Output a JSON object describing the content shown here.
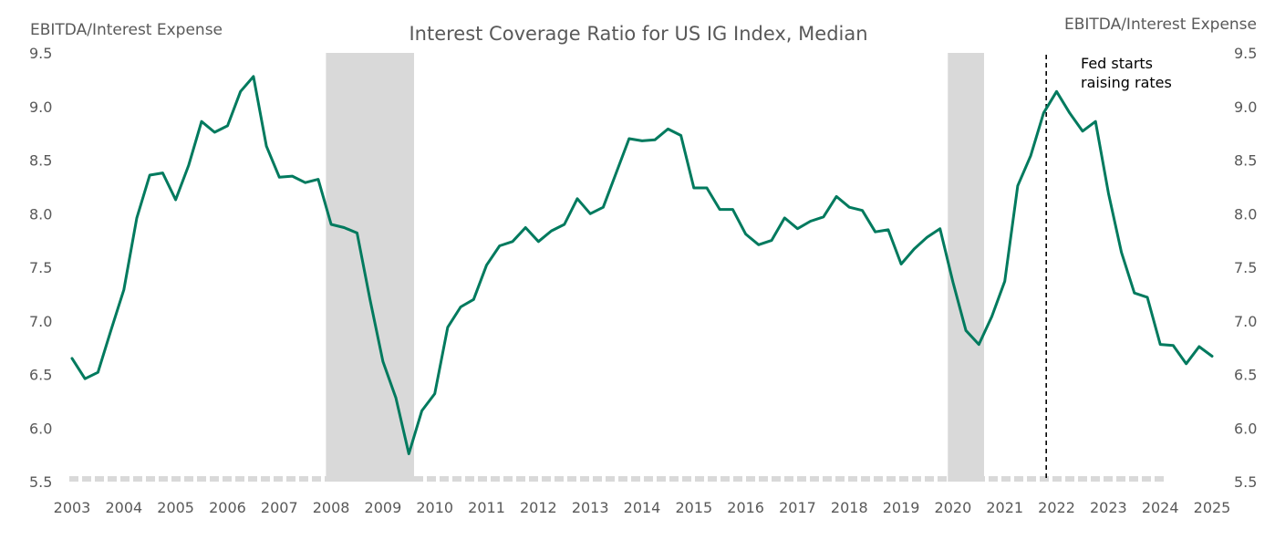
{
  "chart_data": {
    "type": "line",
    "title": "Interest Coverage Ratio for US IG Index, Median",
    "ylabel_left": "EBITDA/Interest Expense",
    "ylabel_right": "EBITDA/Interest Expense",
    "ylim": [
      5.5,
      9.5
    ],
    "yticks": [
      "5.5",
      "6.0",
      "6.5",
      "7.0",
      "7.5",
      "8.0",
      "8.5",
      "9.0",
      "9.5"
    ],
    "xlim": [
      2003,
      2025
    ],
    "xticks": [
      "2003",
      "2004",
      "2005",
      "2006",
      "2007",
      "2008",
      "2009",
      "2010",
      "2011",
      "2012",
      "2013",
      "2014",
      "2015",
      "2016",
      "2017",
      "2018",
      "2019",
      "2020",
      "2021",
      "2022",
      "2023",
      "2024",
      "2025"
    ],
    "recessions": [
      [
        2007.9,
        2009.6
      ],
      [
        2019.9,
        2020.6
      ]
    ],
    "annotation": {
      "x": 2021.8,
      "text_line1": "Fed starts",
      "text_line2": "raising rates"
    },
    "colors": {
      "line": "#007a5e",
      "recession": "#d9d9d9",
      "text": "#595959",
      "annotation": "#000000"
    },
    "series": [
      {
        "name": "Interest Coverage Ratio (Median)",
        "x": [
          2003.0,
          2003.25,
          2003.5,
          2003.75,
          2004.0,
          2004.25,
          2004.5,
          2004.75,
          2005.0,
          2005.25,
          2005.5,
          2005.75,
          2006.0,
          2006.25,
          2006.5,
          2006.75,
          2007.0,
          2007.25,
          2007.5,
          2007.75,
          2008.0,
          2008.25,
          2008.5,
          2008.75,
          2009.0,
          2009.25,
          2009.5,
          2009.75,
          2010.0,
          2010.25,
          2010.5,
          2010.75,
          2011.0,
          2011.25,
          2011.5,
          2011.75,
          2012.0,
          2012.25,
          2012.5,
          2012.75,
          2013.0,
          2013.25,
          2013.5,
          2013.75,
          2014.0,
          2014.25,
          2014.5,
          2014.75,
          2015.0,
          2015.25,
          2015.5,
          2015.75,
          2016.0,
          2016.25,
          2016.5,
          2016.75,
          2017.0,
          2017.25,
          2017.5,
          2017.75,
          2018.0,
          2018.25,
          2018.5,
          2018.75,
          2019.0,
          2019.25,
          2019.5,
          2019.75,
          2020.0,
          2020.25,
          2020.5,
          2020.75,
          2021.0,
          2021.25,
          2021.5,
          2021.75,
          2022.0,
          2022.25,
          2022.5,
          2022.75,
          2023.0,
          2023.25,
          2023.5,
          2023.75,
          2024.0,
          2024.25,
          2024.5,
          2024.75,
          2025.0
        ],
        "values": [
          6.65,
          6.46,
          6.52,
          6.91,
          7.29,
          7.96,
          8.36,
          8.38,
          8.13,
          8.45,
          8.86,
          8.76,
          8.82,
          9.14,
          9.28,
          8.63,
          8.34,
          8.35,
          8.29,
          8.32,
          7.9,
          7.87,
          7.82,
          7.2,
          6.62,
          6.28,
          5.76,
          6.16,
          6.32,
          6.94,
          7.13,
          7.2,
          7.52,
          7.7,
          7.74,
          7.87,
          7.74,
          7.84,
          7.9,
          8.14,
          8.0,
          8.06,
          8.38,
          8.7,
          8.68,
          8.69,
          8.79,
          8.73,
          8.24,
          8.24,
          8.04,
          8.04,
          7.81,
          7.71,
          7.75,
          7.96,
          7.86,
          7.93,
          7.97,
          8.16,
          8.06,
          8.03,
          7.83,
          7.85,
          7.53,
          7.67,
          7.78,
          7.86,
          7.36,
          6.91,
          6.78,
          7.04,
          7.37,
          8.26,
          8.54,
          8.94,
          9.14,
          8.94,
          8.77,
          8.86,
          8.19,
          7.64,
          7.26,
          7.22,
          6.78,
          6.77,
          6.6,
          6.76,
          6.67
        ]
      }
    ]
  }
}
